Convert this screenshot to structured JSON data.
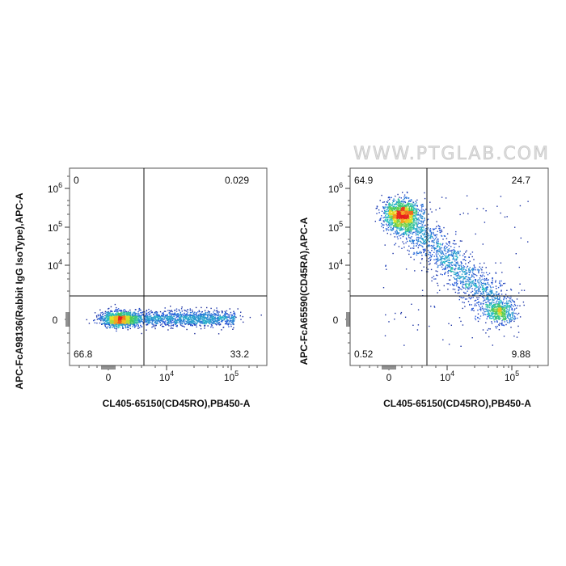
{
  "watermark": "WWW.PTGLAB.COM",
  "chart_data": [
    {
      "type": "scatter",
      "ylabel": "APC-FcA98136(Rabbit IgG IsoType),APC-A",
      "xlabel": "CL405-65150(CD45RO),PB450-A",
      "x_scale": "biexponential",
      "y_scale": "biexponential",
      "x_ticks": [
        {
          "label": "0",
          "value": 0
        },
        {
          "label": "10",
          "sup": "4",
          "value": 10000
        },
        {
          "label": "10",
          "sup": "5",
          "value": 100000
        }
      ],
      "y_ticks": [
        {
          "label": "0",
          "value": 0
        },
        {
          "label": "10",
          "sup": "4",
          "value": 10000
        },
        {
          "label": "10",
          "sup": "5",
          "value": 100000
        },
        {
          "label": "10",
          "sup": "6",
          "value": 1000000
        }
      ],
      "quadrants": {
        "top_left": "0",
        "top_right": "0.029",
        "bottom_left": "66.8",
        "bottom_right": "33.2"
      },
      "populations": [
        {
          "x_center": 600,
          "y_center": 0,
          "spread": "tight, high density"
        },
        {
          "x_range": [
            2000,
            90000
          ],
          "y_center": 0,
          "spread": "horizontal streak"
        }
      ]
    },
    {
      "type": "scatter",
      "ylabel": "APC-FcA65590(CD45RA),APC-A",
      "xlabel": "CL405-65150(CD45RO),PB450-A",
      "x_scale": "biexponential",
      "y_scale": "biexponential",
      "x_ticks": [
        {
          "label": "0",
          "value": 0
        },
        {
          "label": "10",
          "sup": "4",
          "value": 10000
        },
        {
          "label": "10",
          "sup": "5",
          "value": 100000
        }
      ],
      "y_ticks": [
        {
          "label": "0",
          "value": 0
        },
        {
          "label": "10",
          "sup": "4",
          "value": 10000
        },
        {
          "label": "10",
          "sup": "5",
          "value": 100000
        },
        {
          "label": "10",
          "sup": "6",
          "value": 1000000
        }
      ],
      "quadrants": {
        "top_left": "64.9",
        "top_right": "24.7",
        "bottom_left": "0.52",
        "bottom_right": "9.88"
      },
      "populations": [
        {
          "x_center": 600,
          "y_center": 200000,
          "spread": "dense cluster"
        },
        {
          "x_range": [
            1000,
            100000
          ],
          "y_range": [
            200000,
            0
          ],
          "spread": "diagonal tail"
        }
      ]
    }
  ]
}
